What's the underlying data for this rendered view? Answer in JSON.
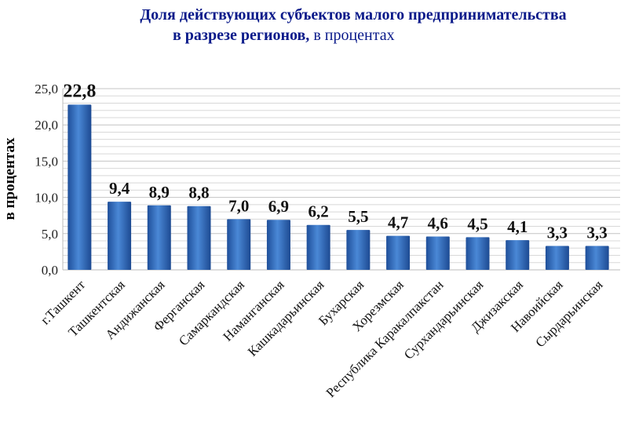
{
  "chart_data": {
    "type": "bar",
    "title_line1": "Доля действующих субъектов малого предпринимательства",
    "title_line2_bold": "в разрезе регионов,",
    "title_line2_normal": " в процентах",
    "xlabel": "",
    "ylabel": "в процентах",
    "ylim": [
      0,
      25
    ],
    "yticks": [
      "0,0",
      "5,0",
      "10,0",
      "15,0",
      "20,0",
      "25,0"
    ],
    "grid": true,
    "categories": [
      "г.Ташкент",
      "Ташкентская",
      "Андижанская",
      "Ферганская",
      "Самаркандская",
      "Наманганская",
      "Кашкадарьинская",
      "Бухарская",
      "Хорезмская",
      "Республика Каракалпакстан",
      "Сурхандарьинская",
      "Джизакская",
      "Навоийская",
      "Сырдарьинская"
    ],
    "values": [
      22.8,
      9.4,
      8.9,
      8.8,
      7.0,
      6.9,
      6.2,
      5.5,
      4.7,
      4.6,
      4.5,
      4.1,
      3.3,
      3.3
    ],
    "data_labels": [
      "22,8",
      "9,4",
      "8,9",
      "8,8",
      "7,0",
      "6,9",
      "6,2",
      "5,5",
      "4,7",
      "4,6",
      "4,5",
      "4,1",
      "3,3",
      "3,3"
    ],
    "colors": {
      "bar": "#3a74c4",
      "title": "#0a1a8a"
    }
  }
}
